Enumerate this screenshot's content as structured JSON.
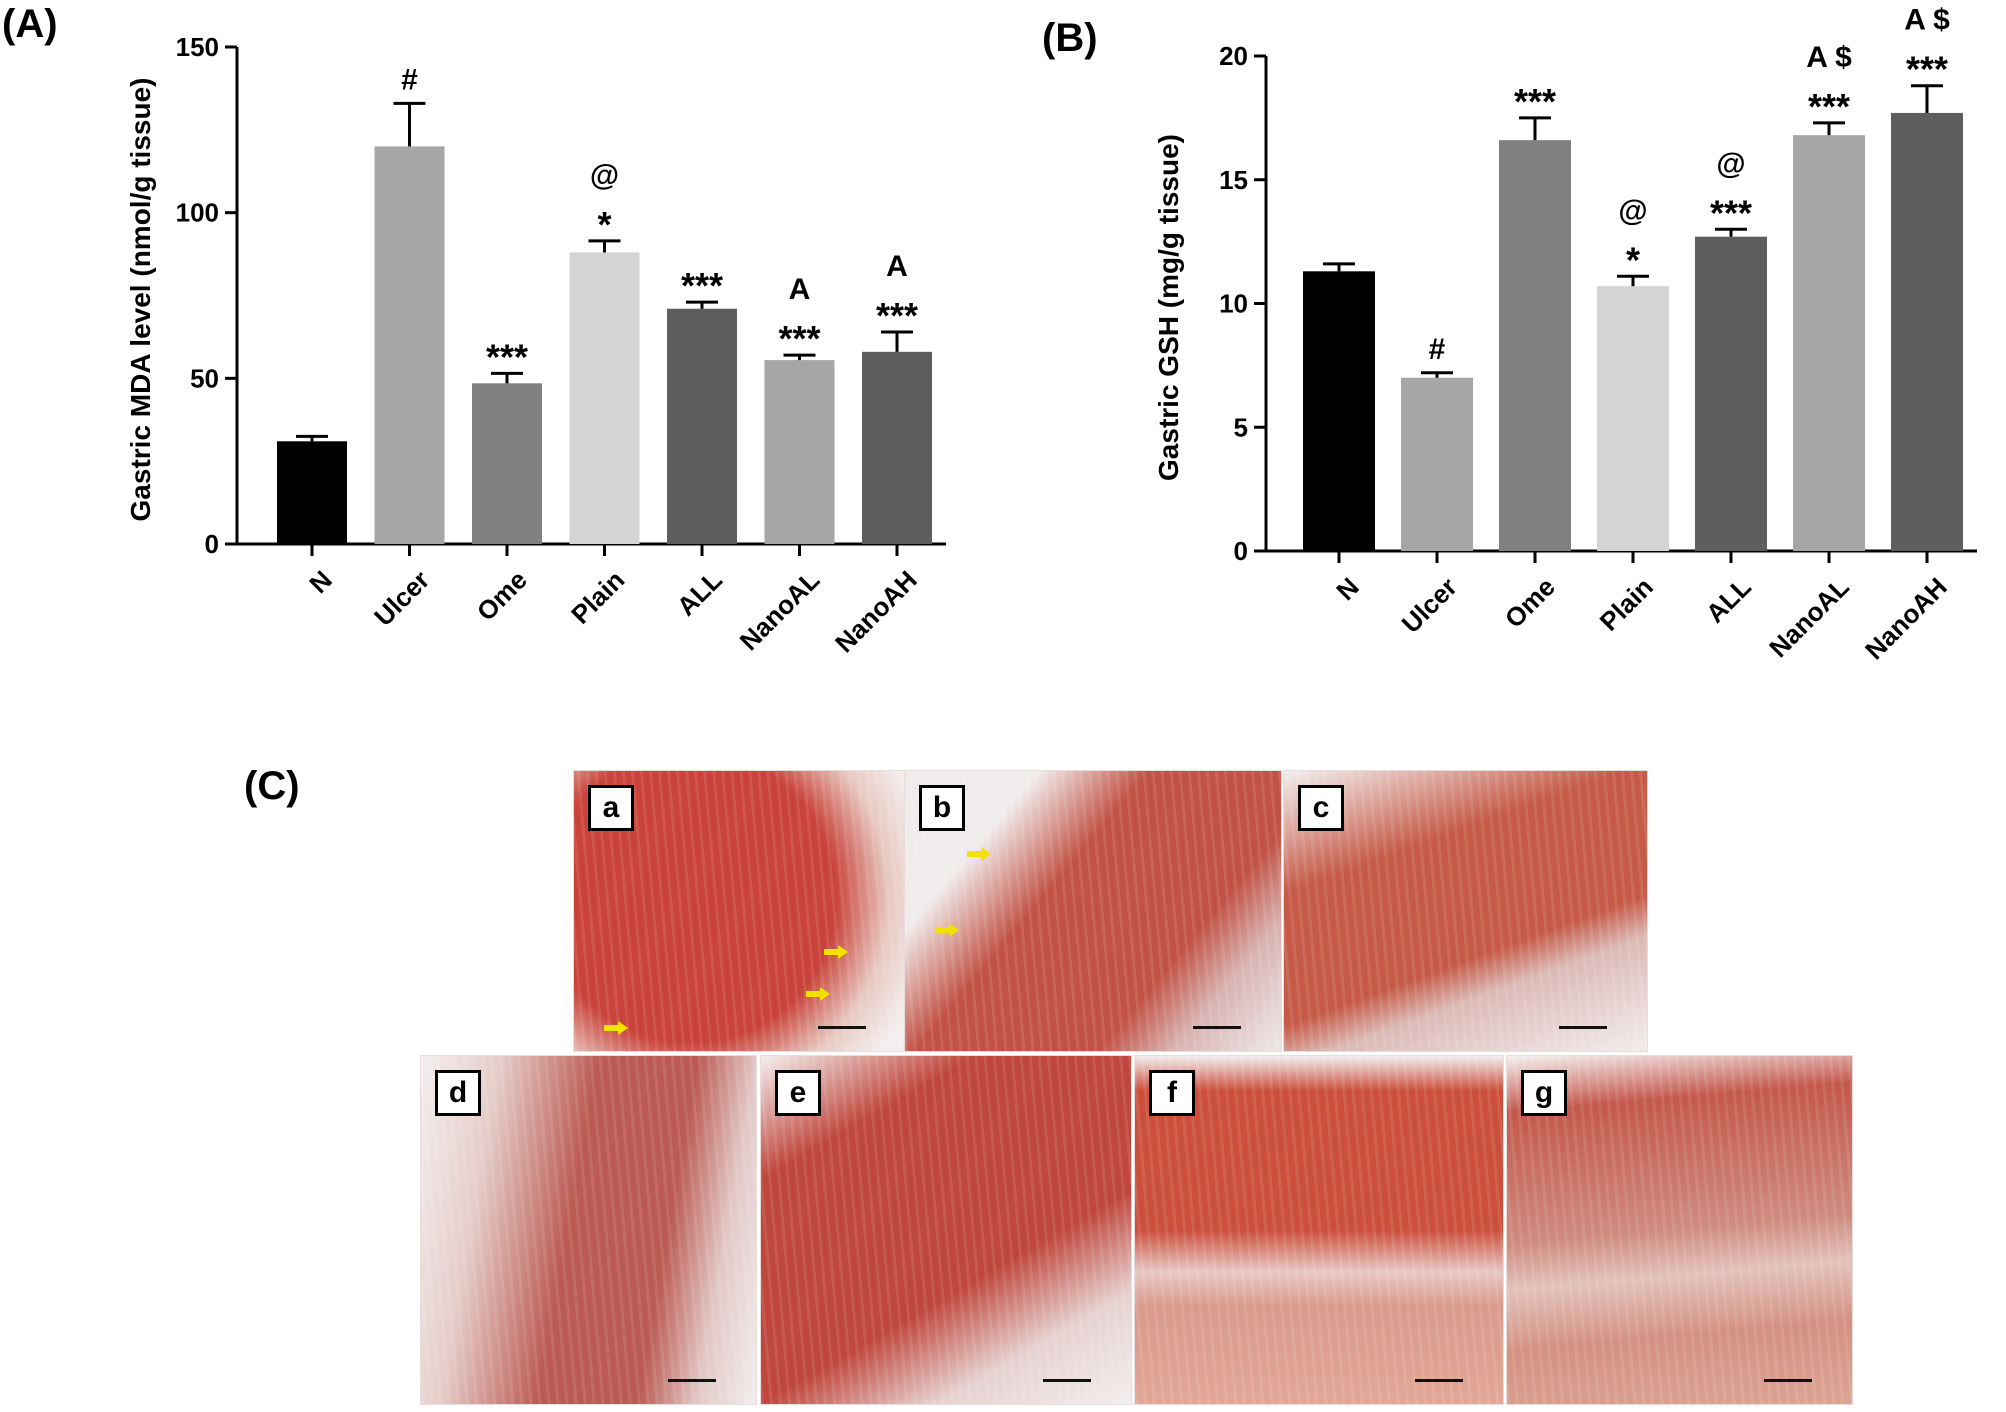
{
  "panels": {
    "A": "(A)",
    "B": "(B)",
    "C": "(C)"
  },
  "chart_data": [
    {
      "type": "bar",
      "ylabel": "Gastric MDA level (nmol/g tissue)",
      "ylim": [
        0,
        150
      ],
      "yticks": [
        0,
        50,
        100,
        150
      ],
      "categories": [
        "N",
        "Ulcer",
        "Ome",
        "Plain",
        "ALL",
        "NanoAL",
        "NanoAH"
      ],
      "values": [
        31,
        120,
        48.5,
        88,
        71,
        55.5,
        58
      ],
      "errors": [
        1.5,
        13,
        3,
        3.5,
        2,
        1.5,
        6
      ],
      "colors": [
        "#000000",
        "#a6a6a6",
        "#808080",
        "#d4d4d4",
        "#5e5e5e",
        "#a6a6a6",
        "#5e5e5e"
      ],
      "annotations": [
        [],
        [
          "#"
        ],
        [
          "***"
        ],
        [
          "*",
          "@"
        ],
        [
          "***"
        ],
        [
          "***",
          "A"
        ],
        [
          "***",
          "A"
        ]
      ]
    },
    {
      "type": "bar",
      "ylabel": "Gastric GSH (mg/g tissue)",
      "ylim": [
        0,
        20
      ],
      "yticks": [
        0,
        5,
        10,
        15,
        20
      ],
      "categories": [
        "N",
        "Ulcer",
        "Ome",
        "Plain",
        "ALL",
        "NanoAL",
        "NanoAH"
      ],
      "values": [
        11.3,
        7.0,
        16.6,
        10.7,
        12.7,
        16.8,
        17.7
      ],
      "errors": [
        0.3,
        0.2,
        0.9,
        0.4,
        0.3,
        0.5,
        1.1
      ],
      "colors": [
        "#000000",
        "#a6a6a6",
        "#808080",
        "#d4d4d4",
        "#5e5e5e",
        "#a6a6a6",
        "#5e5e5e"
      ],
      "annotations": [
        [],
        [
          "#"
        ],
        [
          "***"
        ],
        [
          "*",
          "@"
        ],
        [
          "***",
          "@"
        ],
        [
          "***",
          "A $"
        ],
        [
          "***",
          "A $"
        ]
      ]
    }
  ],
  "micrographs": [
    {
      "letter": "a",
      "color": "#c9433a"
    },
    {
      "letter": "b",
      "color": "#c25245"
    },
    {
      "letter": "c",
      "color": "#c65a47"
    },
    {
      "letter": "d",
      "color": "#bb5a52"
    },
    {
      "letter": "e",
      "color": "#c0473d"
    },
    {
      "letter": "f",
      "color": "#cc4f3b"
    },
    {
      "letter": "g",
      "color": "#c4584c"
    }
  ]
}
